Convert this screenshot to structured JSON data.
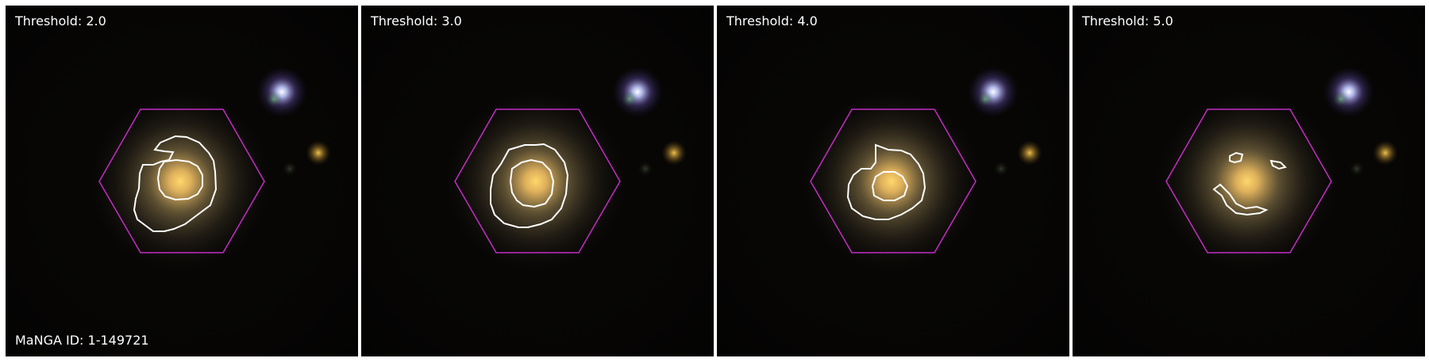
{
  "manga_id_label": "MaNGA ID: 1-149721",
  "panels": [
    {
      "label": "Threshold: 2.0"
    },
    {
      "label": "Threshold: 3.0"
    },
    {
      "label": "Threshold: 4.0"
    },
    {
      "label": "Threshold: 5.0"
    }
  ],
  "colors": {
    "background": "#050403",
    "hexagon": "#c22cc4",
    "contour": "#ffffff",
    "galaxy_core": "#f3c461",
    "galaxy_halo": "#9c8150",
    "blue_star": "#aab2ff",
    "yellow_star": "#d8a636"
  }
}
